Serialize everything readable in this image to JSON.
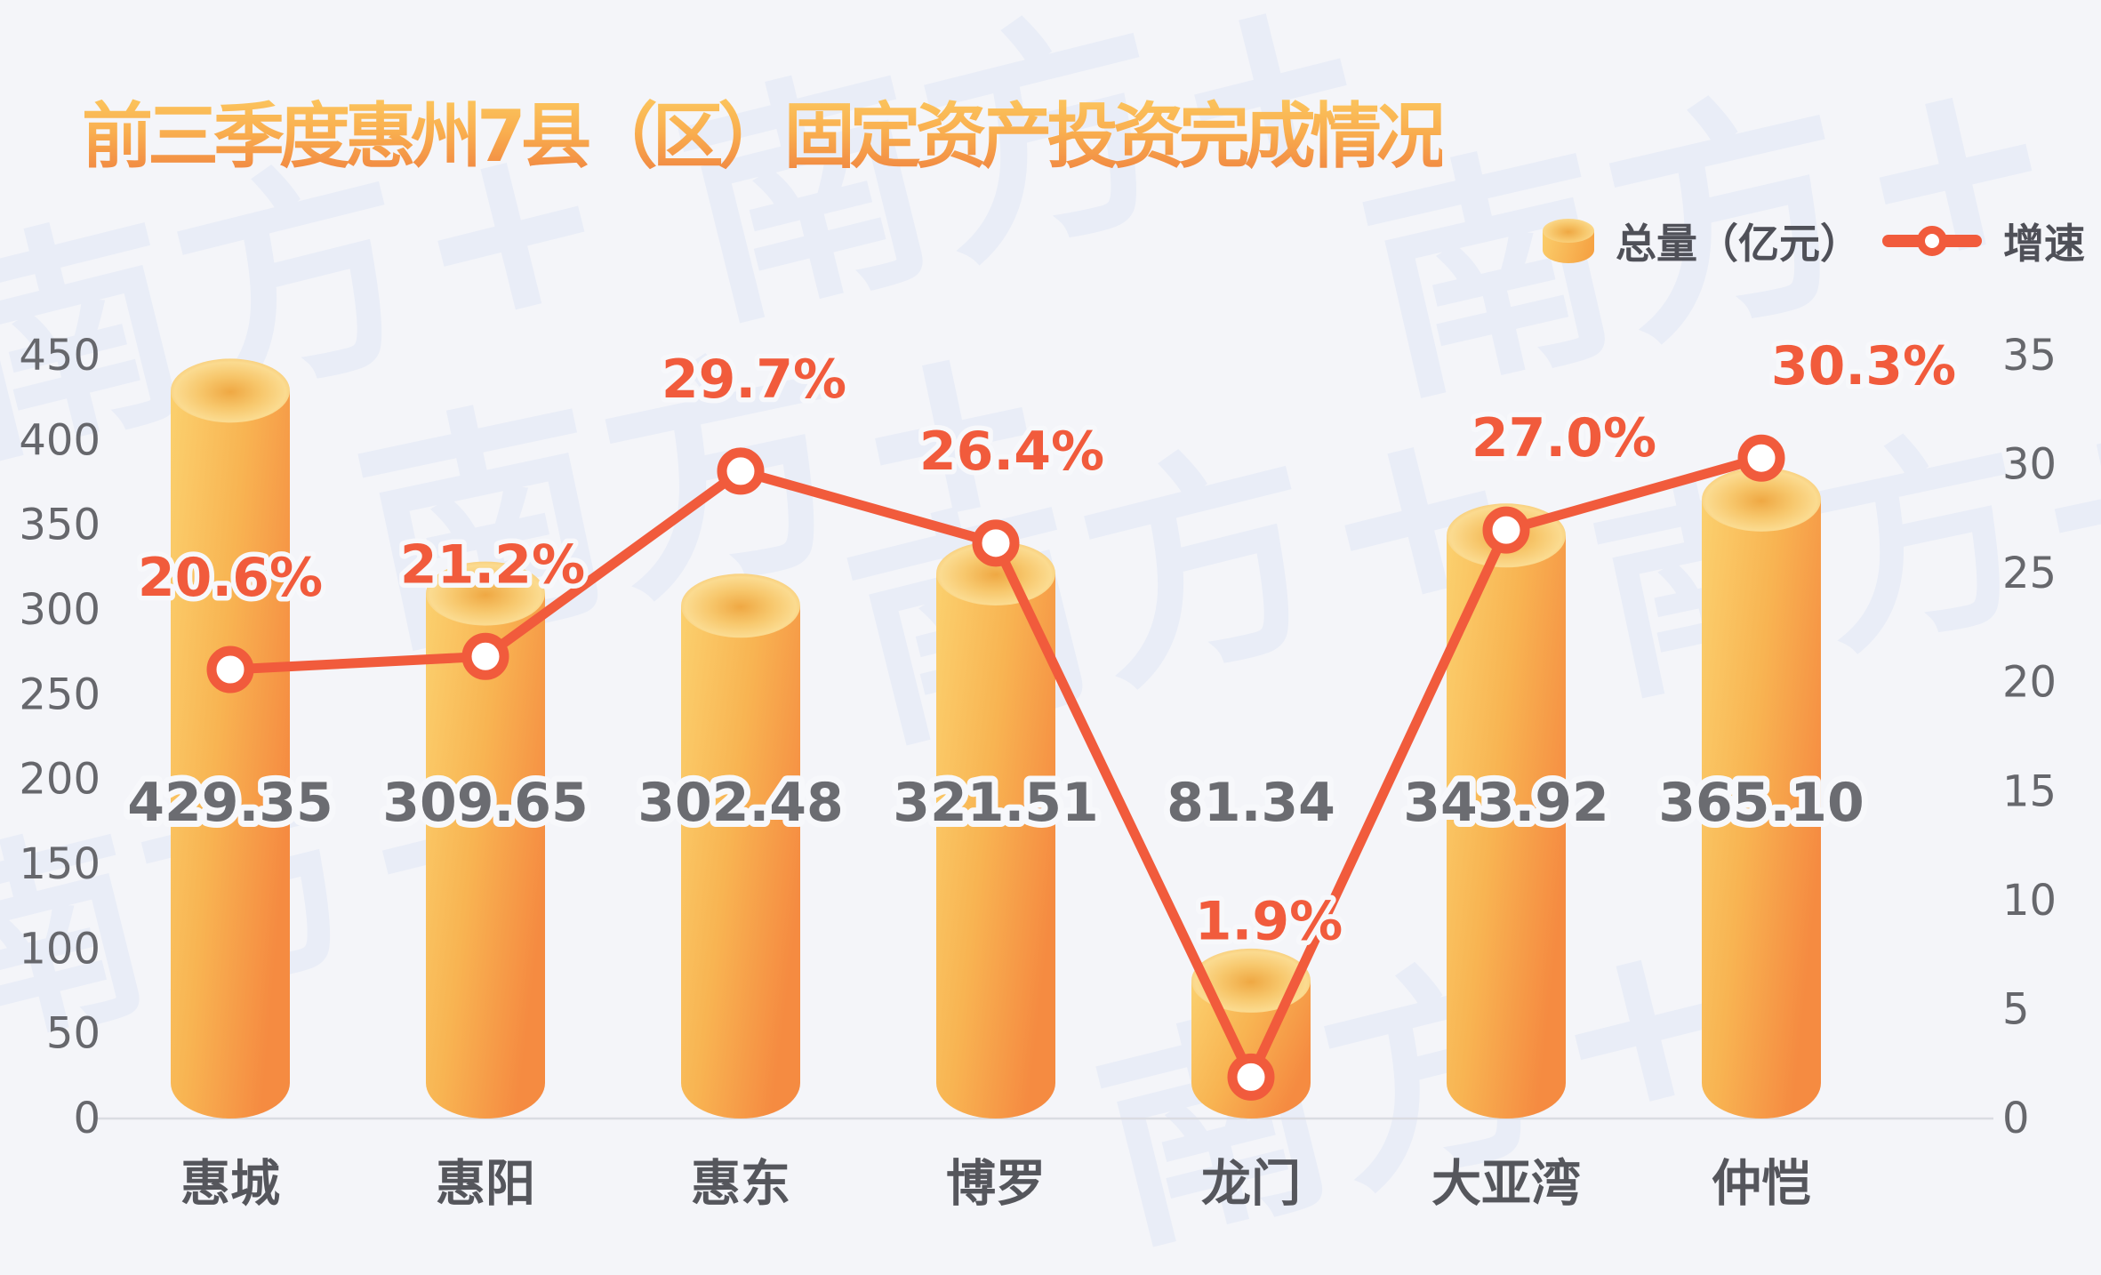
{
  "title": "前三季度惠州7县（区）固定资产投资完成情况",
  "watermark": "南方+",
  "legend": {
    "bar_label": "总量（亿元）",
    "line_label": "增速"
  },
  "colors": {
    "background": "#F4F5F9",
    "bar_gradient_light": "#FBD06E",
    "bar_gradient_dark": "#F58B41",
    "bar_top_inner": "#EFA843",
    "bar_top_ring": "#FBDB90",
    "line": "#F15B3C",
    "percent_label": "#F15B3C",
    "value_label": "#6B6C71",
    "axis_label": "#66676C",
    "category_label": "#55565C",
    "axis_line": "#DADCE2",
    "title_gradient_top": "#FCC85F",
    "title_gradient_bottom": "#EF7F3F",
    "watermark": "#E9EDF7"
  },
  "chart_data": {
    "type": "bar+line",
    "title": "前三季度惠州7县（区）固定资产投资完成情况",
    "categories": [
      "惠城",
      "惠阳",
      "惠东",
      "博罗",
      "龙门",
      "大亚湾",
      "仲恺"
    ],
    "series": [
      {
        "name": "总量（亿元）",
        "type": "bar",
        "axis": "left",
        "values": [
          429.35,
          309.65,
          302.48,
          321.51,
          81.34,
          343.92,
          365.1
        ],
        "value_labels": [
          "429.35",
          "309.65",
          "302.48",
          "321.51",
          "81.34",
          "343.92",
          "365.10"
        ]
      },
      {
        "name": "增速",
        "type": "line",
        "axis": "right",
        "values": [
          20.6,
          21.2,
          29.7,
          26.4,
          1.9,
          27.0,
          30.3
        ],
        "value_labels": [
          "20.6%",
          "21.2%",
          "29.7%",
          "26.4%",
          "1.9%",
          "27.0%",
          "30.3%"
        ]
      }
    ],
    "left_axis": {
      "min": 0,
      "max": 450,
      "ticks": [
        0,
        50,
        100,
        150,
        200,
        250,
        300,
        350,
        400,
        450
      ]
    },
    "right_axis": {
      "min": 0,
      "max": 35,
      "ticks": [
        0,
        5,
        10,
        15,
        20,
        25,
        30,
        35
      ]
    },
    "grid": false,
    "legend_position": "top-right"
  }
}
